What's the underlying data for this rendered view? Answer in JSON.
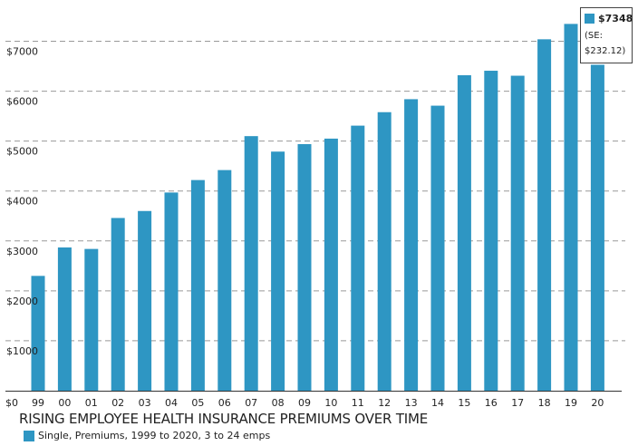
{
  "chart_data": {
    "type": "bar",
    "title": "RISING EMPLOYEE HEALTH INSURANCE PREMIUMS OVER TIME",
    "x_origin_label": "$0",
    "categories": [
      "99",
      "00",
      "01",
      "02",
      "03",
      "04",
      "05",
      "06",
      "07",
      "08",
      "09",
      "10",
      "11",
      "12",
      "13",
      "14",
      "15",
      "16",
      "17",
      "18",
      "19",
      "20"
    ],
    "series": [
      {
        "name": "Single, Premiums, 1999 to 2020, 3 to 24 emps",
        "color": "#2e96c3",
        "values": [
          2300,
          2870,
          2840,
          3460,
          3600,
          3970,
          4220,
          4420,
          5100,
          4790,
          4940,
          5050,
          5310,
          5580,
          5840,
          5710,
          6320,
          6410,
          6310,
          7040,
          7348,
          6530
        ]
      }
    ],
    "y_ticks": [
      "$1000",
      "$2000",
      "$3000",
      "$4000",
      "$5000",
      "$6000",
      "$7000"
    ],
    "ylim": [
      0,
      7700
    ],
    "grid": true,
    "tooltip": {
      "value": "$7348",
      "se_label": "(SE:",
      "se_value": "$232.12)"
    }
  }
}
